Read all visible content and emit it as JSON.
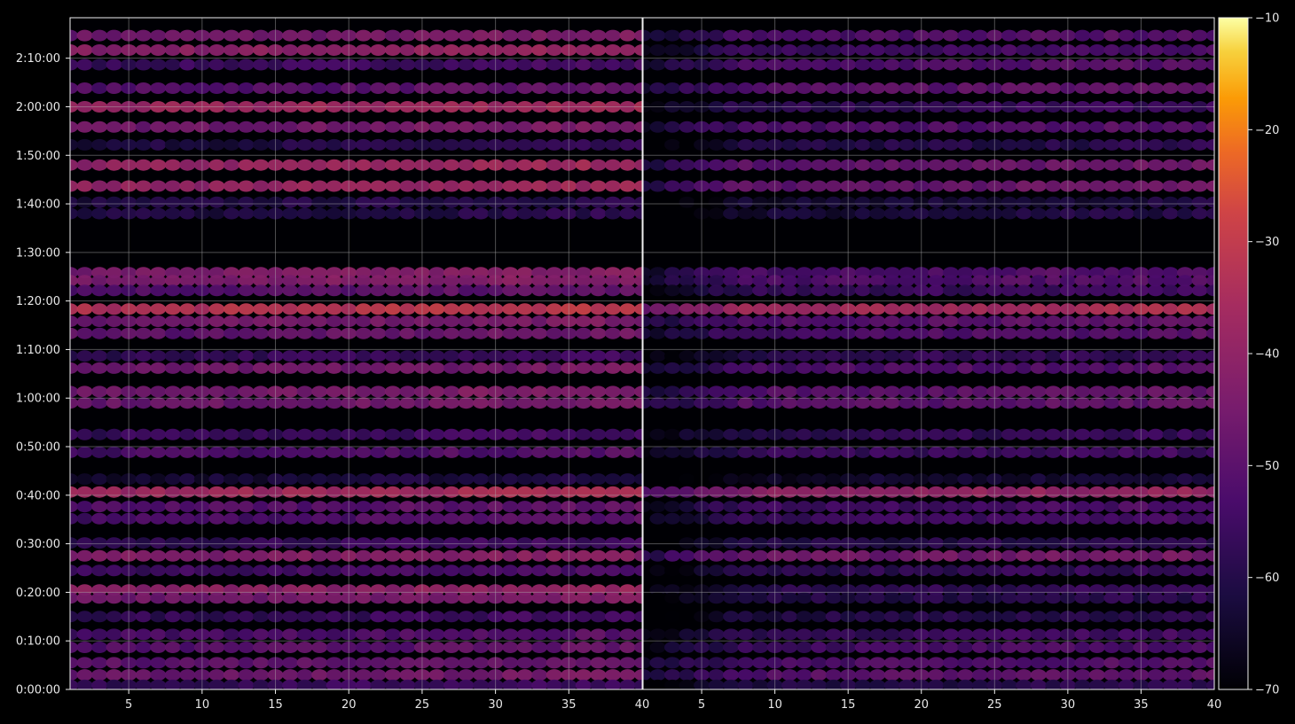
{
  "chart_data": {
    "type": "heatmap",
    "title": "",
    "xlabel": "",
    "ylabel": "",
    "panels": [
      {
        "name": "",
        "xlim": [
          1,
          40
        ]
      },
      {
        "name": "",
        "xlim": [
          1,
          40
        ]
      }
    ],
    "x_ticks": [
      5,
      10,
      15,
      20,
      25,
      30,
      35
    ],
    "x_end_label_left": "40",
    "x_end_label_right": "40",
    "y_ticks": [
      "0:00:00",
      "0:10:00",
      "0:20:00",
      "0:30:00",
      "0:40:00",
      "0:50:00",
      "1:00:00",
      "1:10:00",
      "1:20:00",
      "1:30:00",
      "1:40:00",
      "1:50:00",
      "2:00:00",
      "2:10:00"
    ],
    "y_tick_seconds": [
      0,
      600,
      1200,
      1800,
      2400,
      3000,
      3600,
      4200,
      4800,
      5400,
      6000,
      6600,
      7200,
      7800
    ],
    "ylim_seconds": [
      0,
      8300
    ],
    "colorbar": {
      "colormap": "inferno",
      "range": [
        -70,
        -10
      ],
      "ticks": [
        -70,
        -60,
        -50,
        -40,
        -30,
        -20,
        -10
      ],
      "tick_labels": [
        "−70",
        "−60",
        "−50",
        "−40",
        "−30",
        "−20",
        "−10"
      ]
    },
    "grid": true,
    "strong_bands": [
      {
        "time_s": 8080,
        "left_db": -45,
        "right_db": -52
      },
      {
        "time_s": 7900,
        "left_db": -40,
        "right_db": -55
      },
      {
        "time_s": 7720,
        "left_db": -55,
        "right_db": -52
      },
      {
        "time_s": 7430,
        "left_db": -50,
        "right_db": -50
      },
      {
        "time_s": 7200,
        "left_db": -37,
        "right_db": -57
      },
      {
        "time_s": 6950,
        "left_db": -45,
        "right_db": -52
      },
      {
        "time_s": 6730,
        "left_db": -60,
        "right_db": -60
      },
      {
        "time_s": 6480,
        "left_db": -38,
        "right_db": -48
      },
      {
        "time_s": 6220,
        "left_db": -38,
        "right_db": -48
      },
      {
        "time_s": 6020,
        "left_db": -60,
        "right_db": -63
      },
      {
        "time_s": 5880,
        "left_db": -60,
        "right_db": -62
      },
      {
        "time_s": 5150,
        "left_db": -43,
        "right_db": -52
      },
      {
        "time_s": 5050,
        "left_db": -43,
        "right_db": -52
      },
      {
        "time_s": 4930,
        "left_db": -50,
        "right_db": -56
      },
      {
        "time_s": 4700,
        "left_db": -32,
        "right_db": -36
      },
      {
        "time_s": 4550,
        "left_db": -45,
        "right_db": -50
      },
      {
        "time_s": 4400,
        "left_db": -48,
        "right_db": -52
      },
      {
        "time_s": 4120,
        "left_db": -56,
        "right_db": -58
      },
      {
        "time_s": 3970,
        "left_db": -46,
        "right_db": -52
      },
      {
        "time_s": 3680,
        "left_db": -44,
        "right_db": -50
      },
      {
        "time_s": 3540,
        "left_db": -46,
        "right_db": -50
      },
      {
        "time_s": 3150,
        "left_db": -55,
        "right_db": -58
      },
      {
        "time_s": 2930,
        "left_db": -52,
        "right_db": -56
      },
      {
        "time_s": 2600,
        "left_db": -62,
        "right_db": -64
      },
      {
        "time_s": 2440,
        "left_db": -36,
        "right_db": -40
      },
      {
        "time_s": 2260,
        "left_db": -50,
        "right_db": -54
      },
      {
        "time_s": 2110,
        "left_db": -52,
        "right_db": -55
      },
      {
        "time_s": 1810,
        "left_db": -56,
        "right_db": -60
      },
      {
        "time_s": 1650,
        "left_db": -42,
        "right_db": -46
      },
      {
        "time_s": 1470,
        "left_db": -54,
        "right_db": -58
      },
      {
        "time_s": 1230,
        "left_db": -40,
        "right_db": -58
      },
      {
        "time_s": 1130,
        "left_db": -45,
        "right_db": -60
      },
      {
        "time_s": 900,
        "left_db": -56,
        "right_db": -60
      },
      {
        "time_s": 680,
        "left_db": -52,
        "right_db": -56
      },
      {
        "time_s": 520,
        "left_db": -50,
        "right_db": -54
      },
      {
        "time_s": 330,
        "left_db": -48,
        "right_db": -52
      },
      {
        "time_s": 180,
        "left_db": -46,
        "right_db": -50
      },
      {
        "time_s": 50,
        "left_db": -56,
        "right_db": -60
      }
    ]
  }
}
